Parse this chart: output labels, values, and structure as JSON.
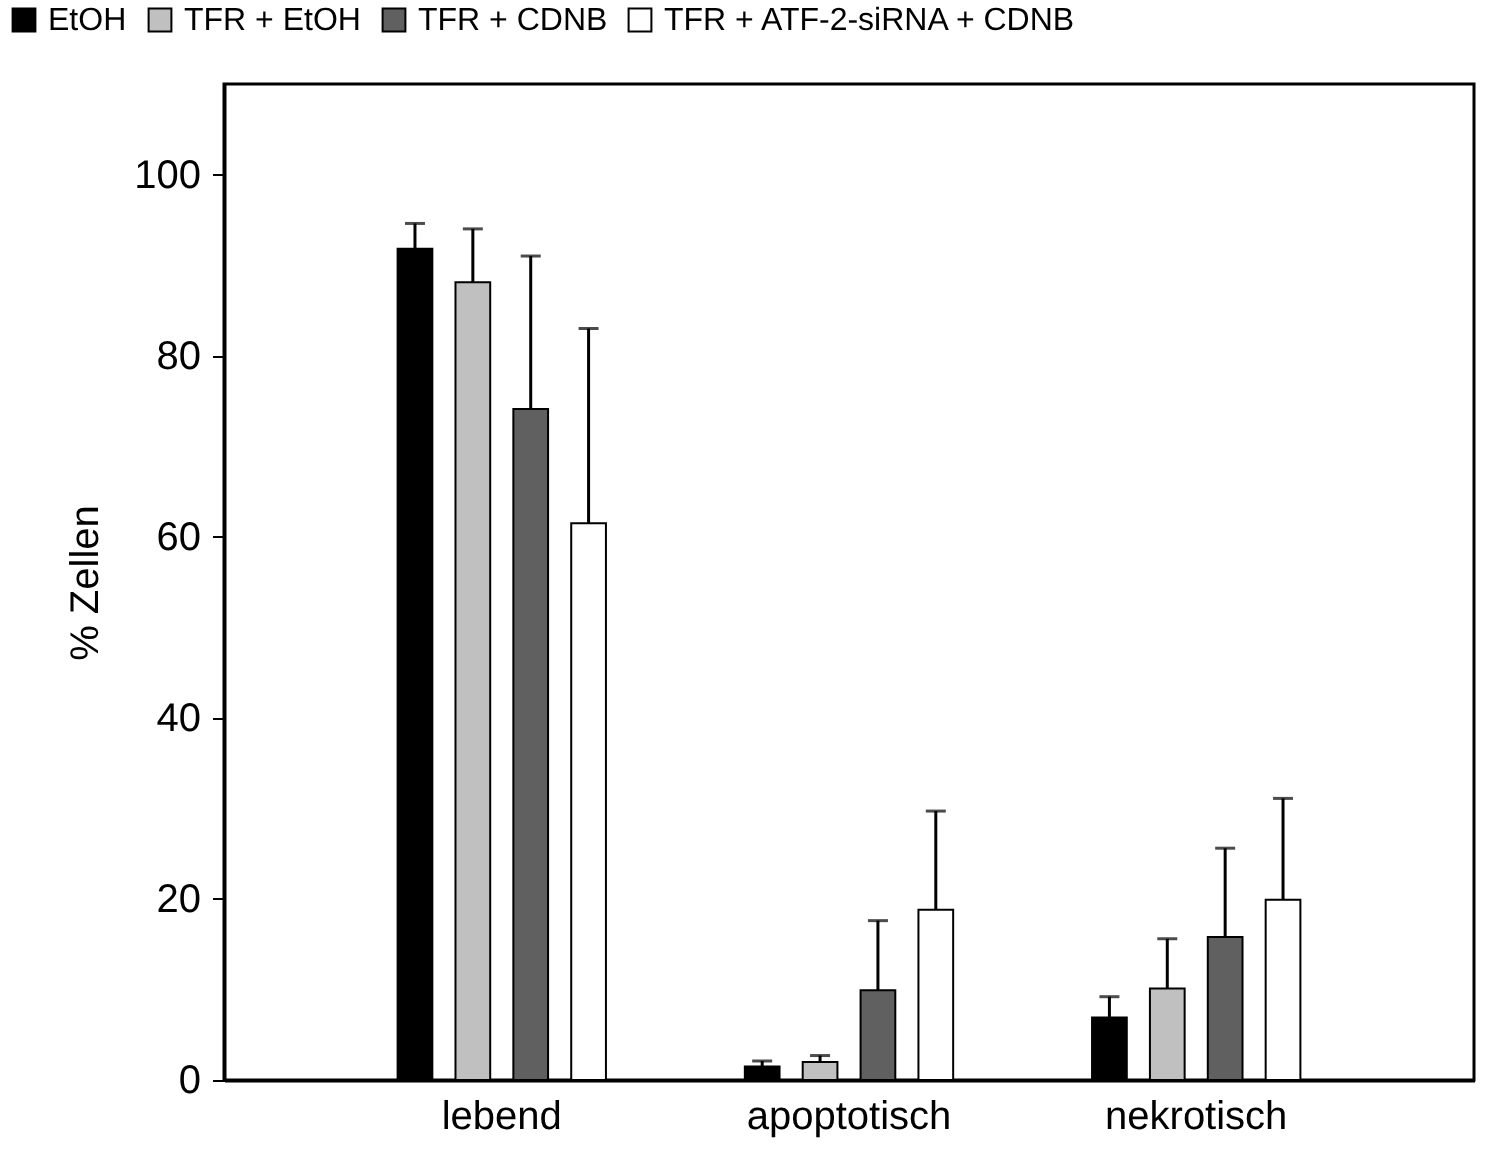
{
  "chart_data": {
    "type": "bar",
    "ylabel": "% Zellen",
    "categories": [
      "lebend",
      "apoptotisch",
      "nekrotisch"
    ],
    "series": [
      {
        "name": "EtOH",
        "color": "#000000",
        "values": [
          91.8,
          1.5,
          6.9
        ],
        "errors": [
          2.8,
          0.6,
          2.3
        ]
      },
      {
        "name": "TFR + EtOH",
        "color": "#c0c0c0",
        "values": [
          88.1,
          2.0,
          10.1
        ],
        "errors": [
          5.9,
          0.7,
          5.5
        ]
      },
      {
        "name": "TFR + CDNB",
        "color": "#606060",
        "values": [
          74.1,
          9.9,
          15.8
        ],
        "errors": [
          16.9,
          7.7,
          9.8
        ]
      },
      {
        "name": "TFR + ATF-2-siRNA + CDNB",
        "color": "#ffffff",
        "values": [
          61.5,
          18.8,
          19.9
        ],
        "errors": [
          21.5,
          10.9,
          11.2
        ]
      }
    ],
    "ylim": [
      0,
      110
    ],
    "yticks": [
      0,
      20,
      40,
      60,
      80,
      100
    ],
    "grid": false,
    "legend": "top"
  }
}
